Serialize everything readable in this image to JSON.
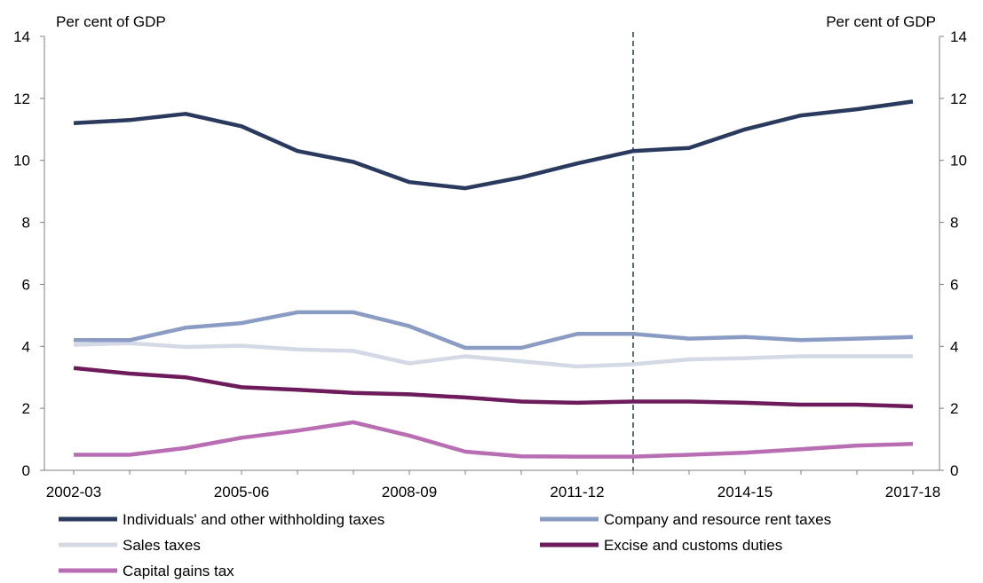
{
  "chart_data": {
    "type": "line",
    "left_axis_label": "Per cent of GDP",
    "right_axis_label": "Per cent of GDP",
    "ylim": [
      0,
      14
    ],
    "yticks": [
      0,
      2,
      4,
      6,
      8,
      10,
      12,
      14
    ],
    "categories": [
      "2002-03",
      "2003-04",
      "2004-05",
      "2005-06",
      "2006-07",
      "2007-08",
      "2008-09",
      "2009-10",
      "2010-11",
      "2011-12",
      "2012-13",
      "2013-14",
      "2014-15",
      "2015-16",
      "2016-17",
      "2017-18"
    ],
    "x_tick_labels": [
      "2002-03",
      "2005-06",
      "2008-09",
      "2011-12",
      "2014-15",
      "2017-18"
    ],
    "projection_divider_after": "2012-13",
    "series": [
      {
        "name": "Individuals' and other withholding taxes",
        "color": "#2a3a5e",
        "values": [
          11.2,
          11.3,
          11.5,
          11.1,
          10.3,
          9.95,
          9.3,
          9.1,
          9.45,
          9.9,
          10.3,
          10.4,
          11.0,
          11.45,
          11.65,
          11.9
        ]
      },
      {
        "name": "Company and resource rent taxes",
        "color": "#8a9cc4",
        "values": [
          4.2,
          4.2,
          4.6,
          4.75,
          5.1,
          5.1,
          4.65,
          3.95,
          3.95,
          4.4,
          4.4,
          4.25,
          4.3,
          4.2,
          4.25,
          4.3
        ]
      },
      {
        "name": "Sales taxes",
        "color": "#d4d9e6",
        "values": [
          4.05,
          4.1,
          3.98,
          4.02,
          3.9,
          3.85,
          3.45,
          3.68,
          3.52,
          3.35,
          3.42,
          3.58,
          3.62,
          3.68,
          3.68,
          3.68
        ]
      },
      {
        "name": "Excise and customs duties",
        "color": "#6e1b5c",
        "values": [
          3.3,
          3.12,
          3.0,
          2.68,
          2.6,
          2.5,
          2.45,
          2.35,
          2.22,
          2.18,
          2.22,
          2.22,
          2.18,
          2.12,
          2.12,
          2.06
        ]
      },
      {
        "name": "Capital gains tax",
        "color": "#b96db3",
        "values": [
          0.5,
          0.5,
          0.72,
          1.05,
          1.28,
          1.55,
          1.12,
          0.6,
          0.45,
          0.44,
          0.44,
          0.5,
          0.57,
          0.68,
          0.8,
          0.85
        ]
      }
    ],
    "legend": [
      "Individuals' and other withholding taxes",
      "Company and resource rent taxes",
      "Sales taxes",
      "Excise and customs duties",
      "Capital gains tax"
    ],
    "grid": false,
    "legend_placement": "bottom"
  }
}
